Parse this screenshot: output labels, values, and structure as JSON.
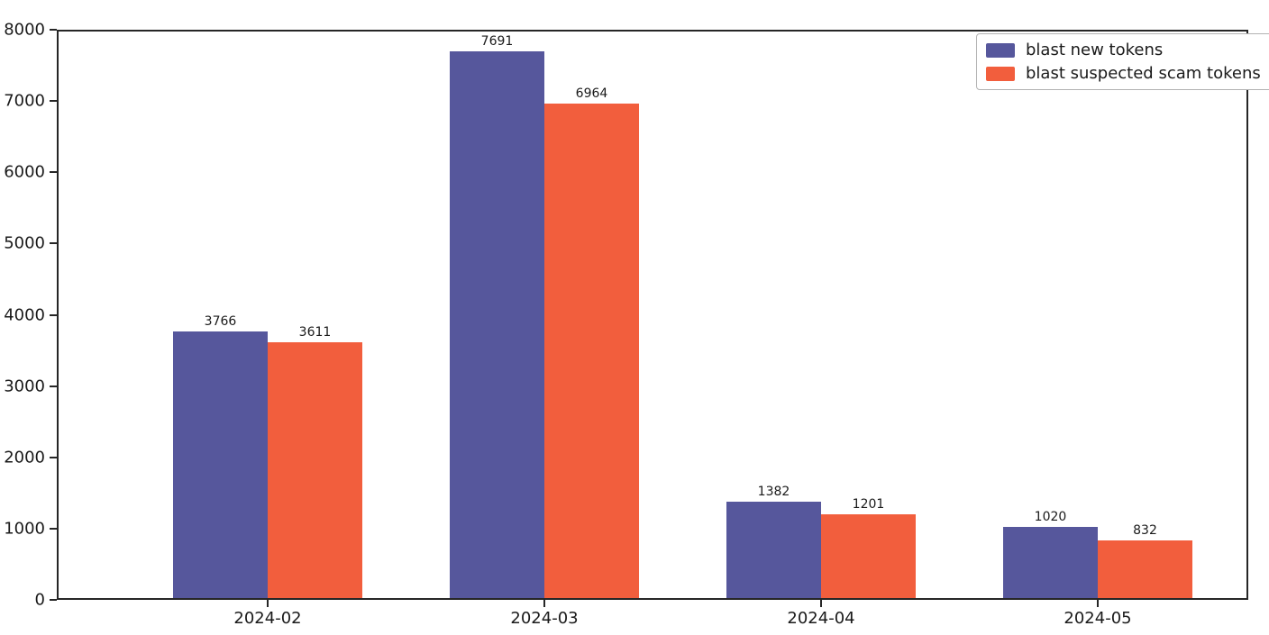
{
  "chart_data": {
    "type": "bar",
    "title": "",
    "xlabel": "",
    "ylabel": "",
    "categories": [
      "2024-02",
      "2024-03",
      "2024-04",
      "2024-05"
    ],
    "series": [
      {
        "name": "blast new tokens",
        "color": "#56579C",
        "values": [
          3766,
          7691,
          1382,
          1020
        ]
      },
      {
        "name": "blast suspected scam tokens",
        "color": "#F25E3D",
        "values": [
          3611,
          6964,
          1201,
          832
        ]
      }
    ],
    "bar_value_labels": [
      [
        "3766",
        "7691",
        "1382",
        "1020"
      ],
      [
        "3611",
        "6964",
        "1201",
        "832"
      ]
    ],
    "ylim": [
      0,
      8000
    ],
    "yticks": [
      "0",
      "1000",
      "2000",
      "3000",
      "4000",
      "5000",
      "6000",
      "7000",
      "8000"
    ],
    "grid": false,
    "legend_position": "upper right",
    "background_color": "#ffffff",
    "axis_color": "#262626",
    "text_color": "#1a1a1a"
  }
}
